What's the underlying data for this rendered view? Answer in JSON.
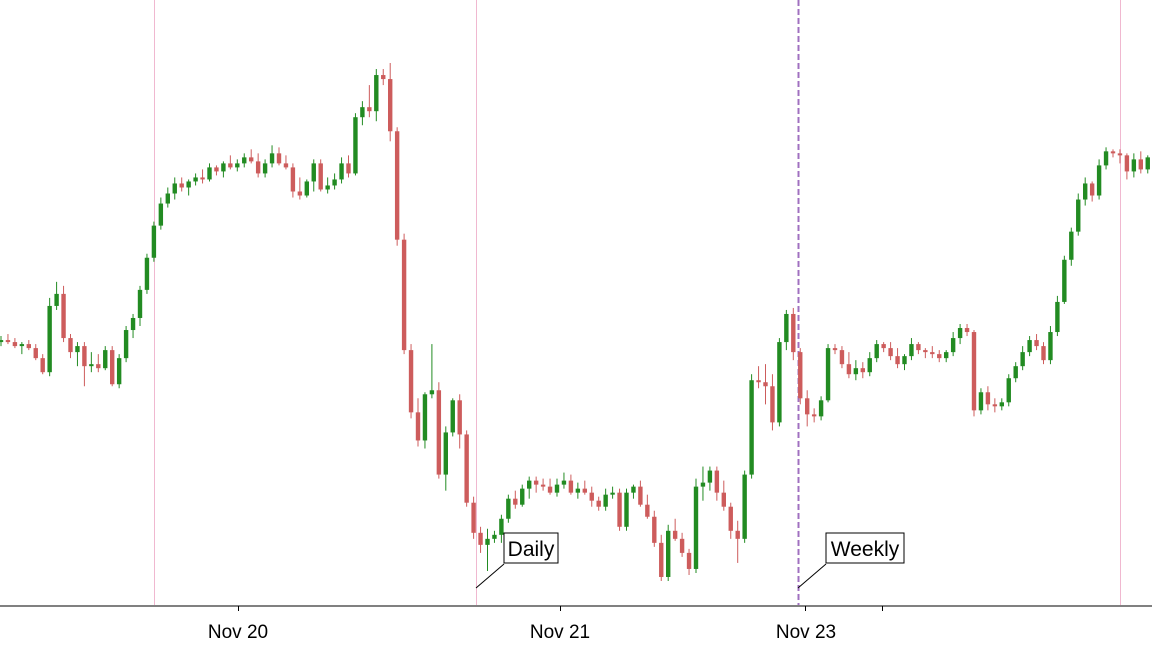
{
  "chart_data": {
    "type": "candlestick",
    "title": "",
    "xlabel": "",
    "ylabel": "",
    "x_tick_labels": [
      "Nov 20",
      "Nov 21",
      "Nov 23"
    ],
    "y_axis_visible": false,
    "grid": false,
    "colors": {
      "up": "#228b22",
      "down": "#cd5c5c",
      "separator": "#f0b8d0",
      "weekly_separator": "#a070c0",
      "axis": "#000000"
    },
    "annotations": [
      {
        "label": "Daily"
      },
      {
        "label": "Weekly"
      }
    ],
    "candles": [
      [
        104.0,
        104.3,
        103.8,
        104.1
      ],
      [
        104.1,
        104.4,
        103.9,
        104.0
      ],
      [
        104.0,
        104.2,
        103.7,
        103.8
      ],
      [
        103.8,
        104.0,
        103.4,
        103.9
      ],
      [
        103.9,
        104.1,
        103.6,
        103.7
      ],
      [
        103.7,
        103.9,
        103.1,
        103.2
      ],
      [
        103.2,
        103.4,
        102.4,
        102.5
      ],
      [
        102.5,
        106.2,
        102.3,
        105.8
      ],
      [
        105.8,
        107.0,
        105.6,
        106.4
      ],
      [
        106.4,
        106.8,
        104.0,
        104.2
      ],
      [
        104.2,
        104.4,
        103.2,
        103.5
      ],
      [
        103.5,
        104.0,
        102.8,
        103.8
      ],
      [
        103.8,
        104.0,
        101.8,
        102.8
      ],
      [
        102.8,
        103.5,
        102.5,
        102.9
      ],
      [
        102.9,
        103.4,
        102.5,
        102.7
      ],
      [
        102.7,
        103.8,
        102.6,
        103.6
      ],
      [
        103.6,
        103.8,
        101.8,
        101.9
      ],
      [
        101.9,
        103.4,
        101.7,
        103.2
      ],
      [
        103.2,
        104.8,
        103.0,
        104.6
      ],
      [
        104.6,
        105.4,
        104.2,
        105.2
      ],
      [
        105.2,
        106.8,
        104.8,
        106.6
      ],
      [
        106.6,
        108.4,
        106.4,
        108.2
      ],
      [
        108.2,
        110.0,
        108.0,
        109.8
      ],
      [
        109.8,
        111.2,
        109.6,
        110.9
      ],
      [
        110.9,
        111.7,
        110.7,
        111.4
      ],
      [
        111.4,
        112.2,
        111.1,
        111.9
      ],
      [
        111.9,
        112.2,
        111.5,
        111.7
      ],
      [
        111.7,
        112.1,
        111.3,
        112.0
      ],
      [
        112.0,
        112.4,
        111.8,
        112.2
      ],
      [
        112.2,
        112.6,
        111.9,
        112.1
      ],
      [
        112.1,
        112.9,
        112.0,
        112.7
      ],
      [
        112.7,
        112.8,
        112.3,
        112.5
      ],
      [
        112.5,
        113.0,
        112.2,
        112.9
      ],
      [
        112.9,
        113.3,
        112.6,
        112.7
      ],
      [
        112.7,
        113.1,
        112.5,
        112.9
      ],
      [
        112.9,
        113.4,
        112.7,
        113.2
      ],
      [
        113.2,
        113.6,
        112.9,
        113.0
      ],
      [
        113.0,
        113.4,
        112.2,
        112.4
      ],
      [
        112.4,
        113.1,
        112.2,
        112.9
      ],
      [
        112.9,
        113.8,
        112.7,
        113.4
      ],
      [
        113.4,
        113.7,
        112.8,
        112.9
      ],
      [
        112.9,
        113.3,
        112.6,
        112.7
      ],
      [
        112.7,
        112.9,
        111.2,
        111.5
      ],
      [
        111.5,
        112.2,
        111.1,
        111.3
      ],
      [
        111.3,
        112.1,
        111.2,
        112.0
      ],
      [
        112.0,
        113.1,
        111.5,
        112.9
      ],
      [
        112.9,
        113.1,
        111.5,
        111.6
      ],
      [
        111.6,
        112.2,
        111.4,
        111.8
      ],
      [
        111.8,
        112.4,
        111.6,
        112.1
      ],
      [
        112.1,
        113.2,
        111.9,
        112.9
      ],
      [
        112.9,
        113.3,
        112.2,
        112.4
      ],
      [
        112.4,
        115.4,
        112.3,
        115.2
      ],
      [
        115.2,
        116.0,
        114.8,
        115.7
      ],
      [
        115.7,
        116.8,
        115.2,
        115.5
      ],
      [
        115.5,
        117.6,
        115.0,
        117.3
      ],
      [
        117.3,
        117.6,
        116.8,
        117.1
      ],
      [
        117.1,
        117.9,
        114.0,
        114.5
      ],
      [
        114.5,
        114.7,
        108.8,
        109.1
      ],
      [
        109.1,
        109.4,
        103.4,
        103.6
      ],
      [
        103.6,
        103.9,
        100.2,
        100.5
      ],
      [
        100.5,
        101.2,
        98.8,
        99.1
      ],
      [
        99.1,
        101.5,
        98.7,
        101.4
      ],
      [
        101.4,
        103.9,
        101.2,
        101.6
      ],
      [
        101.6,
        102.0,
        97.2,
        97.4
      ],
      [
        97.4,
        99.8,
        96.6,
        99.5
      ],
      [
        99.5,
        101.2,
        99.3,
        101.1
      ],
      [
        101.1,
        101.4,
        98.7,
        99.4
      ],
      [
        99.4,
        99.6,
        95.8,
        96.0
      ],
      [
        96.0,
        96.3,
        94.2,
        94.5
      ],
      [
        94.5,
        94.8,
        93.5,
        93.9
      ],
      [
        93.9,
        94.7,
        92.6,
        94.2
      ],
      [
        94.2,
        94.6,
        94.0,
        94.4
      ],
      [
        94.4,
        95.4,
        94.0,
        95.2
      ],
      [
        95.2,
        96.4,
        95.0,
        96.2
      ],
      [
        96.2,
        96.6,
        95.7,
        95.9
      ],
      [
        95.9,
        96.9,
        95.8,
        96.7
      ],
      [
        96.7,
        97.3,
        96.2,
        97.1
      ],
      [
        97.1,
        97.3,
        96.5,
        96.9
      ],
      [
        96.9,
        97.2,
        96.6,
        96.8
      ],
      [
        96.8,
        97.2,
        96.4,
        96.5
      ],
      [
        96.5,
        97.2,
        96.3,
        96.9
      ],
      [
        96.9,
        97.5,
        96.7,
        97.1
      ],
      [
        97.1,
        97.4,
        96.4,
        96.5
      ],
      [
        96.5,
        97.0,
        96.2,
        96.7
      ],
      [
        96.7,
        97.1,
        96.4,
        96.5
      ],
      [
        96.5,
        96.8,
        95.8,
        96.1
      ],
      [
        96.1,
        96.3,
        95.6,
        95.8
      ],
      [
        95.8,
        96.7,
        95.6,
        96.4
      ],
      [
        96.4,
        96.8,
        96.2,
        96.5
      ],
      [
        96.5,
        96.7,
        94.6,
        94.8
      ],
      [
        94.8,
        96.7,
        94.6,
        96.5
      ],
      [
        96.5,
        96.9,
        96.2,
        96.8
      ],
      [
        96.8,
        97.1,
        95.8,
        95.9
      ],
      [
        95.9,
        96.4,
        95.2,
        95.3
      ],
      [
        95.3,
        95.6,
        93.8,
        94.0
      ],
      [
        94.0,
        94.4,
        92.1,
        92.3
      ],
      [
        92.3,
        94.9,
        92.1,
        94.6
      ],
      [
        94.6,
        95.2,
        94.1,
        94.2
      ],
      [
        94.2,
        94.5,
        93.3,
        93.5
      ],
      [
        93.5,
        93.7,
        92.4,
        92.7
      ],
      [
        92.7,
        97.2,
        92.5,
        96.8
      ],
      [
        96.8,
        97.8,
        96.1,
        97.0
      ],
      [
        97.0,
        97.8,
        96.6,
        97.6
      ],
      [
        97.6,
        97.8,
        96.1,
        96.5
      ],
      [
        96.5,
        97.1,
        95.6,
        95.8
      ],
      [
        95.8,
        96.0,
        94.2,
        94.6
      ],
      [
        94.6,
        95.1,
        93.0,
        94.2
      ],
      [
        94.2,
        97.6,
        94.0,
        97.4
      ],
      [
        97.4,
        102.4,
        97.2,
        102.1
      ],
      [
        102.1,
        102.8,
        101.7,
        102.0
      ],
      [
        102.0,
        102.9,
        100.9,
        101.8
      ],
      [
        101.8,
        102.4,
        99.6,
        100.0
      ],
      [
        100.0,
        104.2,
        99.8,
        104.0
      ],
      [
        104.0,
        105.6,
        103.6,
        105.4
      ],
      [
        105.4,
        105.7,
        103.1,
        103.5
      ],
      [
        103.5,
        103.7,
        100.9,
        101.2
      ],
      [
        101.2,
        101.6,
        99.8,
        100.4
      ],
      [
        100.4,
        100.7,
        100.0,
        100.3
      ],
      [
        100.3,
        101.3,
        100.1,
        101.1
      ],
      [
        101.1,
        103.9,
        101.0,
        103.7
      ],
      [
        103.7,
        103.9,
        103.4,
        103.6
      ],
      [
        103.6,
        103.8,
        102.7,
        102.9
      ],
      [
        102.9,
        103.5,
        102.2,
        102.4
      ],
      [
        102.4,
        103.1,
        102.1,
        102.7
      ],
      [
        102.7,
        103.0,
        102.2,
        102.5
      ],
      [
        102.5,
        103.5,
        102.3,
        103.2
      ],
      [
        103.2,
        104.1,
        103.0,
        103.9
      ],
      [
        103.9,
        104.0,
        103.5,
        103.7
      ],
      [
        103.7,
        104.0,
        103.1,
        103.3
      ],
      [
        103.3,
        103.7,
        102.7,
        102.9
      ],
      [
        102.9,
        103.4,
        102.6,
        103.3
      ],
      [
        103.3,
        104.2,
        103.1,
        103.9
      ],
      [
        103.9,
        104.0,
        103.4,
        103.6
      ],
      [
        103.6,
        103.7,
        103.2,
        103.5
      ],
      [
        103.5,
        103.8,
        103.2,
        103.4
      ],
      [
        103.4,
        103.6,
        103.0,
        103.2
      ],
      [
        103.2,
        103.6,
        103.0,
        103.5
      ],
      [
        103.5,
        104.5,
        103.3,
        104.2
      ],
      [
        104.2,
        104.9,
        103.9,
        104.7
      ],
      [
        104.7,
        104.9,
        104.3,
        104.5
      ],
      [
        104.5,
        104.6,
        100.3,
        100.6
      ],
      [
        100.6,
        101.7,
        100.4,
        101.5
      ],
      [
        101.5,
        101.8,
        100.6,
        100.9
      ],
      [
        100.9,
        101.2,
        100.5,
        100.8
      ],
      [
        100.8,
        101.2,
        100.6,
        101.0
      ],
      [
        101.0,
        102.4,
        100.8,
        102.2
      ],
      [
        102.2,
        103.0,
        102.0,
        102.8
      ],
      [
        102.8,
        103.8,
        102.6,
        103.5
      ],
      [
        103.5,
        104.3,
        103.3,
        104.1
      ],
      [
        104.1,
        104.4,
        103.6,
        103.8
      ],
      [
        103.8,
        104.0,
        102.9,
        103.1
      ],
      [
        103.1,
        104.8,
        102.9,
        104.5
      ],
      [
        104.5,
        106.3,
        104.3,
        106.0
      ],
      [
        106.0,
        108.3,
        105.9,
        108.1
      ],
      [
        108.1,
        109.7,
        107.8,
        109.5
      ],
      [
        109.5,
        111.4,
        109.3,
        111.1
      ],
      [
        111.1,
        112.2,
        110.8,
        111.9
      ],
      [
        111.9,
        112.0,
        111.0,
        111.3
      ],
      [
        111.3,
        113.1,
        111.1,
        112.8
      ],
      [
        112.8,
        113.7,
        112.6,
        113.5
      ],
      [
        113.5,
        113.6,
        113.2,
        113.4
      ],
      [
        113.4,
        113.6,
        112.9,
        113.3
      ],
      [
        113.3,
        113.4,
        112.1,
        112.5
      ],
      [
        112.5,
        113.4,
        112.2,
        113.1
      ],
      [
        113.1,
        113.5,
        112.4,
        112.6
      ],
      [
        112.6,
        113.3,
        112.4,
        113.2
      ]
    ]
  }
}
